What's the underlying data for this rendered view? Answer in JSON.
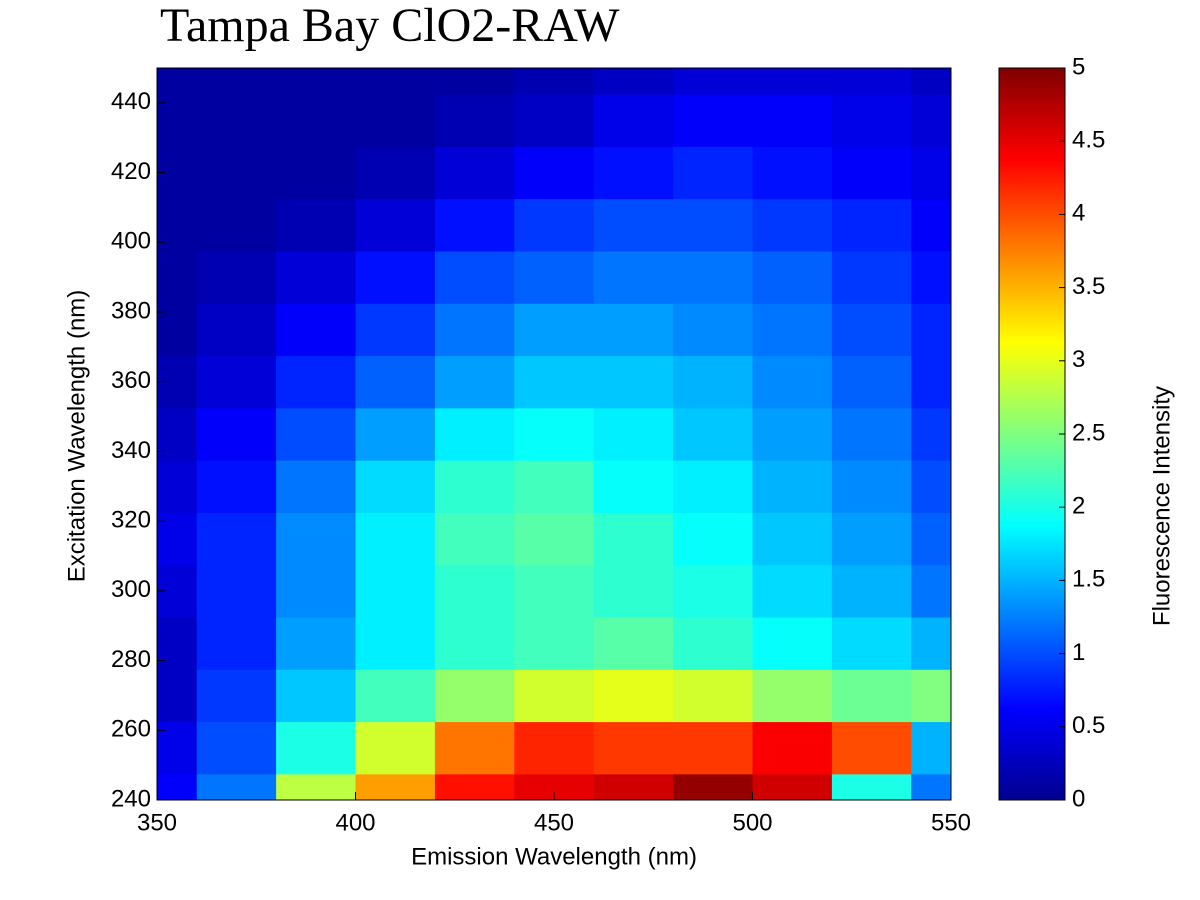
{
  "chart_data": {
    "type": "contour",
    "title": "Tampa Bay ClO2-RAW",
    "xlabel": "Emission Wavelength (nm)",
    "ylabel": "Excitation Wavelength (nm)",
    "colorbar_label": "Fluorescence Intensity",
    "colormap": "jet",
    "x": [
      350,
      370,
      390,
      410,
      430,
      450,
      470,
      490,
      510,
      530,
      550
    ],
    "y": [
      240,
      255,
      270,
      285,
      300,
      315,
      330,
      345,
      360,
      375,
      390,
      405,
      420,
      435,
      450
    ],
    "z": [
      [
        0.6,
        1.2,
        2.8,
        3.6,
        4.3,
        4.5,
        4.6,
        4.9,
        4.6,
        2.0,
        1.2
      ],
      [
        0.5,
        1.0,
        2.0,
        2.9,
        3.8,
        4.2,
        4.1,
        4.1,
        4.4,
        4.0,
        1.5
      ],
      [
        0.3,
        0.9,
        1.6,
        2.2,
        2.6,
        2.9,
        3.0,
        2.9,
        2.6,
        2.4,
        2.5
      ],
      [
        0.3,
        0.8,
        1.4,
        1.8,
        2.1,
        2.2,
        2.3,
        2.1,
        1.9,
        1.7,
        1.5
      ],
      [
        0.4,
        0.8,
        1.3,
        1.8,
        2.1,
        2.2,
        2.1,
        2.0,
        1.7,
        1.5,
        1.2
      ],
      [
        0.5,
        0.8,
        1.3,
        1.8,
        2.2,
        2.3,
        2.1,
        1.9,
        1.6,
        1.4,
        1.1
      ],
      [
        0.4,
        0.7,
        1.2,
        1.7,
        2.1,
        2.2,
        1.9,
        1.8,
        1.5,
        1.3,
        1.0
      ],
      [
        0.3,
        0.6,
        1.0,
        1.4,
        1.8,
        1.9,
        1.8,
        1.6,
        1.4,
        1.2,
        0.9
      ],
      [
        0.2,
        0.4,
        0.8,
        1.1,
        1.4,
        1.6,
        1.6,
        1.5,
        1.3,
        1.1,
        0.8
      ],
      [
        0.1,
        0.3,
        0.6,
        0.9,
        1.2,
        1.4,
        1.4,
        1.3,
        1.2,
        1.0,
        0.8
      ],
      [
        0.1,
        0.2,
        0.4,
        0.7,
        1.0,
        1.1,
        1.2,
        1.2,
        1.1,
        0.9,
        0.7
      ],
      [
        0.1,
        0.1,
        0.2,
        0.4,
        0.7,
        0.9,
        1.0,
        1.0,
        0.9,
        0.8,
        0.6
      ],
      [
        0.1,
        0.1,
        0.1,
        0.2,
        0.4,
        0.6,
        0.7,
        0.8,
        0.7,
        0.6,
        0.5
      ],
      [
        0.1,
        0.1,
        0.1,
        0.1,
        0.2,
        0.3,
        0.5,
        0.6,
        0.6,
        0.5,
        0.4
      ],
      [
        0.1,
        0.1,
        0.1,
        0.1,
        0.1,
        0.2,
        0.3,
        0.4,
        0.4,
        0.4,
        0.3
      ]
    ],
    "xlim": [
      350,
      550
    ],
    "xticks": [
      350,
      400,
      450,
      500,
      550
    ],
    "ylim": [
      240,
      450
    ],
    "yticks": [
      240,
      260,
      280,
      300,
      320,
      340,
      360,
      380,
      400,
      420,
      440
    ],
    "zlim": [
      0,
      5
    ],
    "zticks": [
      0,
      0.5,
      1,
      1.5,
      2,
      2.5,
      3,
      3.5,
      4,
      4.5,
      5
    ]
  }
}
